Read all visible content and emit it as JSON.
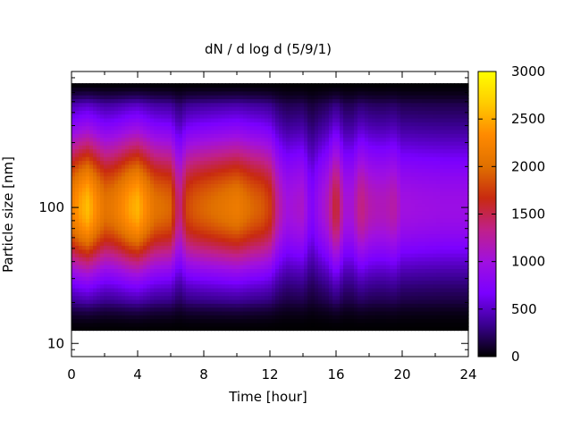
{
  "chart_data": {
    "type": "heatmap",
    "title": "dN / d log d (5/9/1)",
    "xlabel": "Time [hour]",
    "ylabel": "Particle size [nm]",
    "x_range": [
      0,
      24
    ],
    "x_ticks": [
      0,
      4,
      8,
      12,
      16,
      20,
      24
    ],
    "x_tick_labels": [
      "0",
      "4",
      "8",
      "12",
      "16",
      "20",
      "24"
    ],
    "y_scale": "log",
    "y_range": [
      8,
      1000
    ],
    "y_ticks": [
      10,
      100
    ],
    "y_tick_labels": [
      "10",
      "100"
    ],
    "data_y_range": [
      12.5,
      820
    ],
    "colorbar": {
      "min": 0,
      "max": 3000,
      "ticks": [
        0,
        500,
        1000,
        1500,
        2000,
        2500,
        3000
      ],
      "tick_labels": [
        "0",
        "500",
        "1000",
        "1500",
        "2000",
        "2500",
        "3000"
      ],
      "colormap": [
        "#000000",
        "#3a0090",
        "#7a00ff",
        "#a010e0",
        "#c0208a",
        "#c82a10",
        "#e07000",
        "#ff8a00",
        "#ffcc00",
        "#ffff00"
      ]
    },
    "peak_diameter_nm": 100,
    "time_profile": {
      "hours": [
        0,
        0.5,
        1,
        1.5,
        2,
        2.5,
        3,
        3.5,
        4,
        4.5,
        5,
        5.5,
        6,
        6.5,
        7,
        7.5,
        8,
        8.5,
        9,
        9.5,
        10,
        10.5,
        11,
        11.5,
        12,
        12.5,
        13,
        13.5,
        14,
        14.5,
        15,
        15.5,
        16,
        16.5,
        17,
        17.5,
        18,
        18.5,
        19,
        19.5,
        20,
        20.5,
        21,
        21.5,
        22,
        22.5,
        23,
        23.5,
        24
      ],
      "peak_value": [
        2200,
        2450,
        2600,
        2300,
        2050,
        2100,
        2250,
        2450,
        2550,
        2300,
        2050,
        2000,
        1950,
        1300,
        1800,
        1900,
        1950,
        2000,
        2050,
        2100,
        2150,
        2050,
        1950,
        1900,
        1750,
        1250,
        1000,
        1050,
        1100,
        700,
        950,
        1150,
        1650,
        1050,
        1050,
        1400,
        1200,
        1150,
        1150,
        1250,
        1000,
        1000,
        980,
        970,
        960,
        950,
        950,
        950,
        950
      ]
    }
  }
}
